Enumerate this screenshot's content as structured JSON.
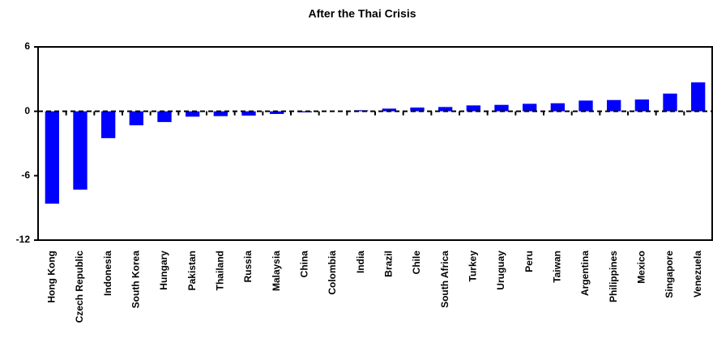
{
  "chart_data": {
    "type": "bar",
    "title": "After the Thai Crisis",
    "categories": [
      "Hong Kong",
      "Czech Republic",
      "Indonesia",
      "South Korea",
      "Hungary",
      "Pakistan",
      "Thailand",
      "Russia",
      "Malaysia",
      "China",
      "Colombia",
      "India",
      "Brazil",
      "Chile",
      "South Africa",
      "Turkey",
      "Uruguay",
      "Peru",
      "Taiwan",
      "Argentina",
      "Philippines",
      "Mexico",
      "Singapore",
      "Venezuela"
    ],
    "values": [
      -8.6,
      -7.3,
      -2.5,
      -1.3,
      -1.0,
      -0.5,
      -0.45,
      -0.4,
      -0.25,
      -0.1,
      0,
      0.1,
      0.25,
      0.35,
      0.4,
      0.55,
      0.6,
      0.7,
      0.75,
      1.0,
      1.05,
      1.1,
      1.65,
      2.7
    ],
    "color": "#0000ff",
    "ylim": [
      -12,
      6
    ],
    "yticks": [
      -12,
      -6,
      0,
      6
    ],
    "grid": false
  }
}
